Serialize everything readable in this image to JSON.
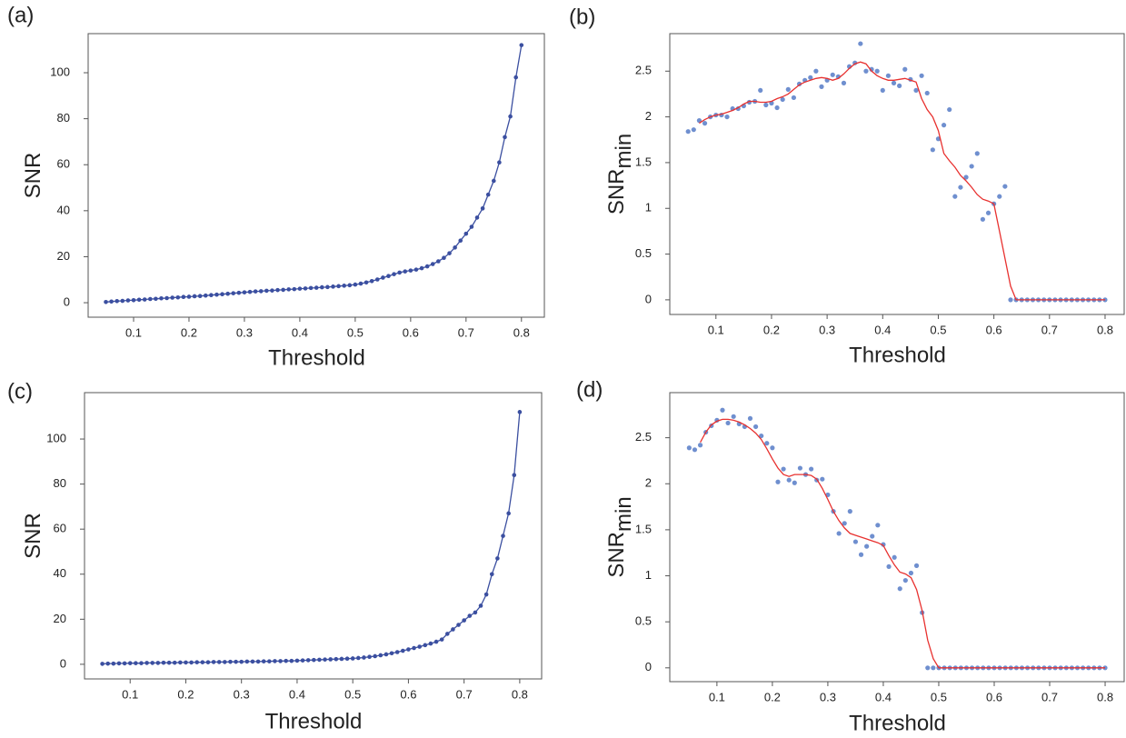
{
  "chart_data": [
    {
      "type": "line",
      "panel_label": "(a)",
      "xlabel": "Threshold",
      "ylabel": "SNR",
      "x": [
        0.05,
        0.06,
        0.07,
        0.08,
        0.09,
        0.1,
        0.11,
        0.12,
        0.13,
        0.14,
        0.15,
        0.16,
        0.17,
        0.18,
        0.19,
        0.2,
        0.21,
        0.22,
        0.23,
        0.24,
        0.25,
        0.26,
        0.27,
        0.28,
        0.29,
        0.3,
        0.31,
        0.32,
        0.33,
        0.34,
        0.35,
        0.36,
        0.37,
        0.38,
        0.39,
        0.4,
        0.41,
        0.42,
        0.43,
        0.44,
        0.45,
        0.46,
        0.47,
        0.48,
        0.49,
        0.5,
        0.51,
        0.52,
        0.53,
        0.54,
        0.55,
        0.56,
        0.57,
        0.58,
        0.59,
        0.6,
        0.61,
        0.62,
        0.63,
        0.64,
        0.65,
        0.66,
        0.67,
        0.68,
        0.69,
        0.7,
        0.71,
        0.72,
        0.73,
        0.74,
        0.75,
        0.76,
        0.77,
        0.78,
        0.79,
        0.8
      ],
      "series": [
        {
          "color": "#3b4fa0",
          "marker": true,
          "line": true,
          "values": [
            0.3,
            0.5,
            0.7,
            0.8,
            1.0,
            1.1,
            1.3,
            1.4,
            1.6,
            1.7,
            1.9,
            2.0,
            2.2,
            2.3,
            2.5,
            2.6,
            2.8,
            2.9,
            3.1,
            3.3,
            3.5,
            3.7,
            3.9,
            4.1,
            4.3,
            4.5,
            4.7,
            4.9,
            5.0,
            5.2,
            5.3,
            5.5,
            5.6,
            5.8,
            5.9,
            6.1,
            6.2,
            6.4,
            6.5,
            6.7,
            6.8,
            7.0,
            7.2,
            7.4,
            7.6,
            7.9,
            8.3,
            8.8,
            9.4,
            10.1,
            10.9,
            11.6,
            12.4,
            13.1,
            13.6,
            14.0,
            14.4,
            15.0,
            15.8,
            16.8,
            18.0,
            19.5,
            21.5,
            24.0,
            27.0,
            30.0,
            33.0,
            37.0,
            41.0,
            47.0,
            53.0,
            61.0,
            72.0,
            81.0,
            98.0,
            112.0
          ]
        }
      ],
      "xlim": [
        0.018,
        0.843
      ],
      "xticks": [
        0.1,
        0.2,
        0.3,
        0.4,
        0.5,
        0.6,
        0.7,
        0.8
      ],
      "ylim": [
        -6.3,
        117
      ],
      "yticks": [
        0,
        20,
        40,
        60,
        80,
        100
      ],
      "grid": false
    },
    {
      "type": "scatter",
      "panel_label": "(b)",
      "xlabel": "Threshold",
      "ylabel": "SNR",
      "ylabel_subscript": "min",
      "x": [
        0.05,
        0.06,
        0.07,
        0.08,
        0.09,
        0.1,
        0.11,
        0.12,
        0.13,
        0.14,
        0.15,
        0.16,
        0.17,
        0.18,
        0.19,
        0.2,
        0.21,
        0.22,
        0.23,
        0.24,
        0.25,
        0.26,
        0.27,
        0.28,
        0.29,
        0.3,
        0.31,
        0.32,
        0.33,
        0.34,
        0.35,
        0.36,
        0.37,
        0.38,
        0.39,
        0.4,
        0.41,
        0.42,
        0.43,
        0.44,
        0.45,
        0.46,
        0.47,
        0.48,
        0.49,
        0.5,
        0.51,
        0.52,
        0.53,
        0.54,
        0.55,
        0.56,
        0.57,
        0.58,
        0.59,
        0.6,
        0.61,
        0.62,
        0.63,
        0.64,
        0.65,
        0.66,
        0.67,
        0.68,
        0.69,
        0.7,
        0.71,
        0.72,
        0.73,
        0.74,
        0.75,
        0.76,
        0.77,
        0.78,
        0.79,
        0.8
      ],
      "series": [
        {
          "color": "#6f8fcf",
          "marker": true,
          "line": false,
          "values": [
            1.84,
            1.86,
            1.96,
            1.93,
            2.0,
            2.02,
            2.02,
            2.0,
            2.09,
            2.09,
            2.12,
            2.16,
            2.17,
            2.29,
            2.13,
            2.15,
            2.1,
            2.19,
            2.3,
            2.21,
            2.36,
            2.4,
            2.43,
            2.5,
            2.33,
            2.4,
            2.46,
            2.44,
            2.37,
            2.55,
            2.59,
            2.8,
            2.5,
            2.52,
            2.5,
            2.29,
            2.45,
            2.37,
            2.34,
            2.52,
            2.41,
            2.29,
            2.45,
            2.26,
            1.64,
            1.76,
            1.91,
            2.08,
            1.13,
            1.23,
            1.34,
            1.46,
            1.6,
            0.88,
            0.95,
            1.05,
            1.13,
            1.24,
            0,
            0,
            0,
            0,
            0,
            0,
            0,
            0,
            0,
            0,
            0,
            0,
            0,
            0,
            0,
            0,
            0,
            0
          ]
        },
        {
          "color": "#e8312f",
          "marker": false,
          "line": true,
          "values": [
            null,
            null,
            1.93,
            1.97,
            2.0,
            2.02,
            2.03,
            2.05,
            2.07,
            2.1,
            2.14,
            2.17,
            2.17,
            2.16,
            2.16,
            2.17,
            2.2,
            2.22,
            2.25,
            2.3,
            2.35,
            2.38,
            2.4,
            2.42,
            2.43,
            2.42,
            2.4,
            2.42,
            2.47,
            2.53,
            2.58,
            2.6,
            2.58,
            2.5,
            2.45,
            2.42,
            2.4,
            2.4,
            2.41,
            2.42,
            2.4,
            2.38,
            2.2,
            2.08,
            2.0,
            1.85,
            1.6,
            1.52,
            1.45,
            1.36,
            1.3,
            1.23,
            1.15,
            1.1,
            1.08,
            1.05,
            0.75,
            0.45,
            0.15,
            0,
            0,
            0,
            0,
            0,
            0,
            0,
            0,
            0,
            0,
            0,
            0,
            0,
            0,
            0,
            0,
            0
          ]
        }
      ],
      "xlim": [
        0.017,
        0.836
      ],
      "xticks": [
        0.1,
        0.2,
        0.3,
        0.4,
        0.5,
        0.6,
        0.7,
        0.8
      ],
      "ylim": [
        -0.16,
        2.91
      ],
      "yticks": [
        0,
        0.5,
        1,
        1.5,
        2,
        2.5
      ],
      "grid": false
    },
    {
      "type": "line",
      "panel_label": "(c)",
      "xlabel": "Threshold",
      "ylabel": "SNR",
      "x": [
        0.05,
        0.06,
        0.07,
        0.08,
        0.09,
        0.1,
        0.11,
        0.12,
        0.13,
        0.14,
        0.15,
        0.16,
        0.17,
        0.18,
        0.19,
        0.2,
        0.21,
        0.22,
        0.23,
        0.24,
        0.25,
        0.26,
        0.27,
        0.28,
        0.29,
        0.3,
        0.31,
        0.32,
        0.33,
        0.34,
        0.35,
        0.36,
        0.37,
        0.38,
        0.39,
        0.4,
        0.41,
        0.42,
        0.43,
        0.44,
        0.45,
        0.46,
        0.47,
        0.48,
        0.49,
        0.5,
        0.51,
        0.52,
        0.53,
        0.54,
        0.55,
        0.56,
        0.57,
        0.58,
        0.59,
        0.6,
        0.61,
        0.62,
        0.63,
        0.64,
        0.65,
        0.66,
        0.67,
        0.68,
        0.69,
        0.7,
        0.71,
        0.72,
        0.73,
        0.74,
        0.75,
        0.76,
        0.77,
        0.78,
        0.79,
        0.8
      ],
      "series": [
        {
          "color": "#3b4fa0",
          "marker": true,
          "line": true,
          "values": [
            0.2,
            0.3,
            0.3,
            0.4,
            0.4,
            0.5,
            0.5,
            0.5,
            0.6,
            0.6,
            0.6,
            0.7,
            0.7,
            0.7,
            0.8,
            0.8,
            0.8,
            0.9,
            0.9,
            0.9,
            1.0,
            1.0,
            1.0,
            1.1,
            1.1,
            1.1,
            1.2,
            1.2,
            1.2,
            1.3,
            1.3,
            1.4,
            1.4,
            1.5,
            1.5,
            1.6,
            1.7,
            1.8,
            1.9,
            2.0,
            2.1,
            2.2,
            2.3,
            2.4,
            2.5,
            2.6,
            2.8,
            3.0,
            3.3,
            3.6,
            4.0,
            4.4,
            4.9,
            5.4,
            6.0,
            6.6,
            7.2,
            7.8,
            8.5,
            9.2,
            10.0,
            11.0,
            13.5,
            15.5,
            17.5,
            19.5,
            21.5,
            23.0,
            26.0,
            31.0,
            40.0,
            47.0,
            57.0,
            67.0,
            84.0,
            112.0
          ]
        }
      ],
      "xlim": [
        0.018,
        0.841
      ],
      "xticks": [
        0.1,
        0.2,
        0.3,
        0.4,
        0.5,
        0.6,
        0.7,
        0.8
      ],
      "ylim": [
        -6.5,
        120.6
      ],
      "yticks": [
        0,
        20,
        40,
        60,
        80,
        100
      ],
      "grid": false
    },
    {
      "type": "scatter",
      "panel_label": "(d)",
      "xlabel": "Threshold",
      "ylabel": "SNR",
      "ylabel_subscript": "min",
      "x": [
        0.05,
        0.06,
        0.07,
        0.08,
        0.09,
        0.1,
        0.11,
        0.12,
        0.13,
        0.14,
        0.15,
        0.16,
        0.17,
        0.18,
        0.19,
        0.2,
        0.21,
        0.22,
        0.23,
        0.24,
        0.25,
        0.26,
        0.27,
        0.28,
        0.29,
        0.3,
        0.31,
        0.32,
        0.33,
        0.34,
        0.35,
        0.36,
        0.37,
        0.38,
        0.39,
        0.4,
        0.41,
        0.42,
        0.43,
        0.44,
        0.45,
        0.46,
        0.47,
        0.48,
        0.49,
        0.5,
        0.51,
        0.52,
        0.53,
        0.54,
        0.55,
        0.56,
        0.57,
        0.58,
        0.59,
        0.6,
        0.61,
        0.62,
        0.63,
        0.64,
        0.65,
        0.66,
        0.67,
        0.68,
        0.69,
        0.7,
        0.71,
        0.72,
        0.73,
        0.74,
        0.75,
        0.76,
        0.77,
        0.78,
        0.79,
        0.8
      ],
      "series": [
        {
          "color": "#6f8fcf",
          "marker": true,
          "line": false,
          "values": [
            2.39,
            2.37,
            2.42,
            2.56,
            2.63,
            2.69,
            2.8,
            2.66,
            2.73,
            2.65,
            2.62,
            2.71,
            2.62,
            2.52,
            2.44,
            2.39,
            2.02,
            2.16,
            2.04,
            2.01,
            2.17,
            2.1,
            2.16,
            2.04,
            2.05,
            1.88,
            1.7,
            1.46,
            1.57,
            1.7,
            1.37,
            1.23,
            1.32,
            1.43,
            1.55,
            1.34,
            1.1,
            1.2,
            0.86,
            0.95,
            1.03,
            1.11,
            0.6,
            0,
            0,
            0,
            0,
            0,
            0,
            0,
            0,
            0,
            0,
            0,
            0,
            0,
            0,
            0,
            0,
            0,
            0,
            0,
            0,
            0,
            0,
            0,
            0,
            0,
            0,
            0,
            0,
            0,
            0,
            0,
            0,
            0
          ]
        },
        {
          "color": "#e8312f",
          "marker": false,
          "line": true,
          "values": [
            null,
            null,
            2.45,
            2.56,
            2.64,
            2.68,
            2.7,
            2.7,
            2.69,
            2.67,
            2.64,
            2.6,
            2.55,
            2.48,
            2.38,
            2.27,
            2.17,
            2.1,
            2.08,
            2.1,
            2.1,
            2.1,
            2.09,
            2.05,
            1.95,
            1.83,
            1.7,
            1.6,
            1.52,
            1.46,
            1.44,
            1.42,
            1.4,
            1.38,
            1.36,
            1.33,
            1.22,
            1.12,
            1.04,
            1.02,
            0.98,
            0.85,
            0.62,
            0.3,
            0.1,
            0,
            0,
            0,
            0,
            0,
            0,
            0,
            0,
            0,
            0,
            0,
            0,
            0,
            0,
            0,
            0,
            0,
            0,
            0,
            0,
            0,
            0,
            0,
            0,
            0,
            0,
            0,
            0,
            0,
            0,
            0
          ]
        }
      ],
      "xlim": [
        0.015,
        0.836
      ],
      "xticks": [
        0.1,
        0.2,
        0.3,
        0.4,
        0.5,
        0.6,
        0.7,
        0.8
      ],
      "ylim": [
        -0.15,
        2.99
      ],
      "yticks": [
        0,
        0.5,
        1,
        1.5,
        2,
        2.5
      ],
      "grid": false
    }
  ]
}
